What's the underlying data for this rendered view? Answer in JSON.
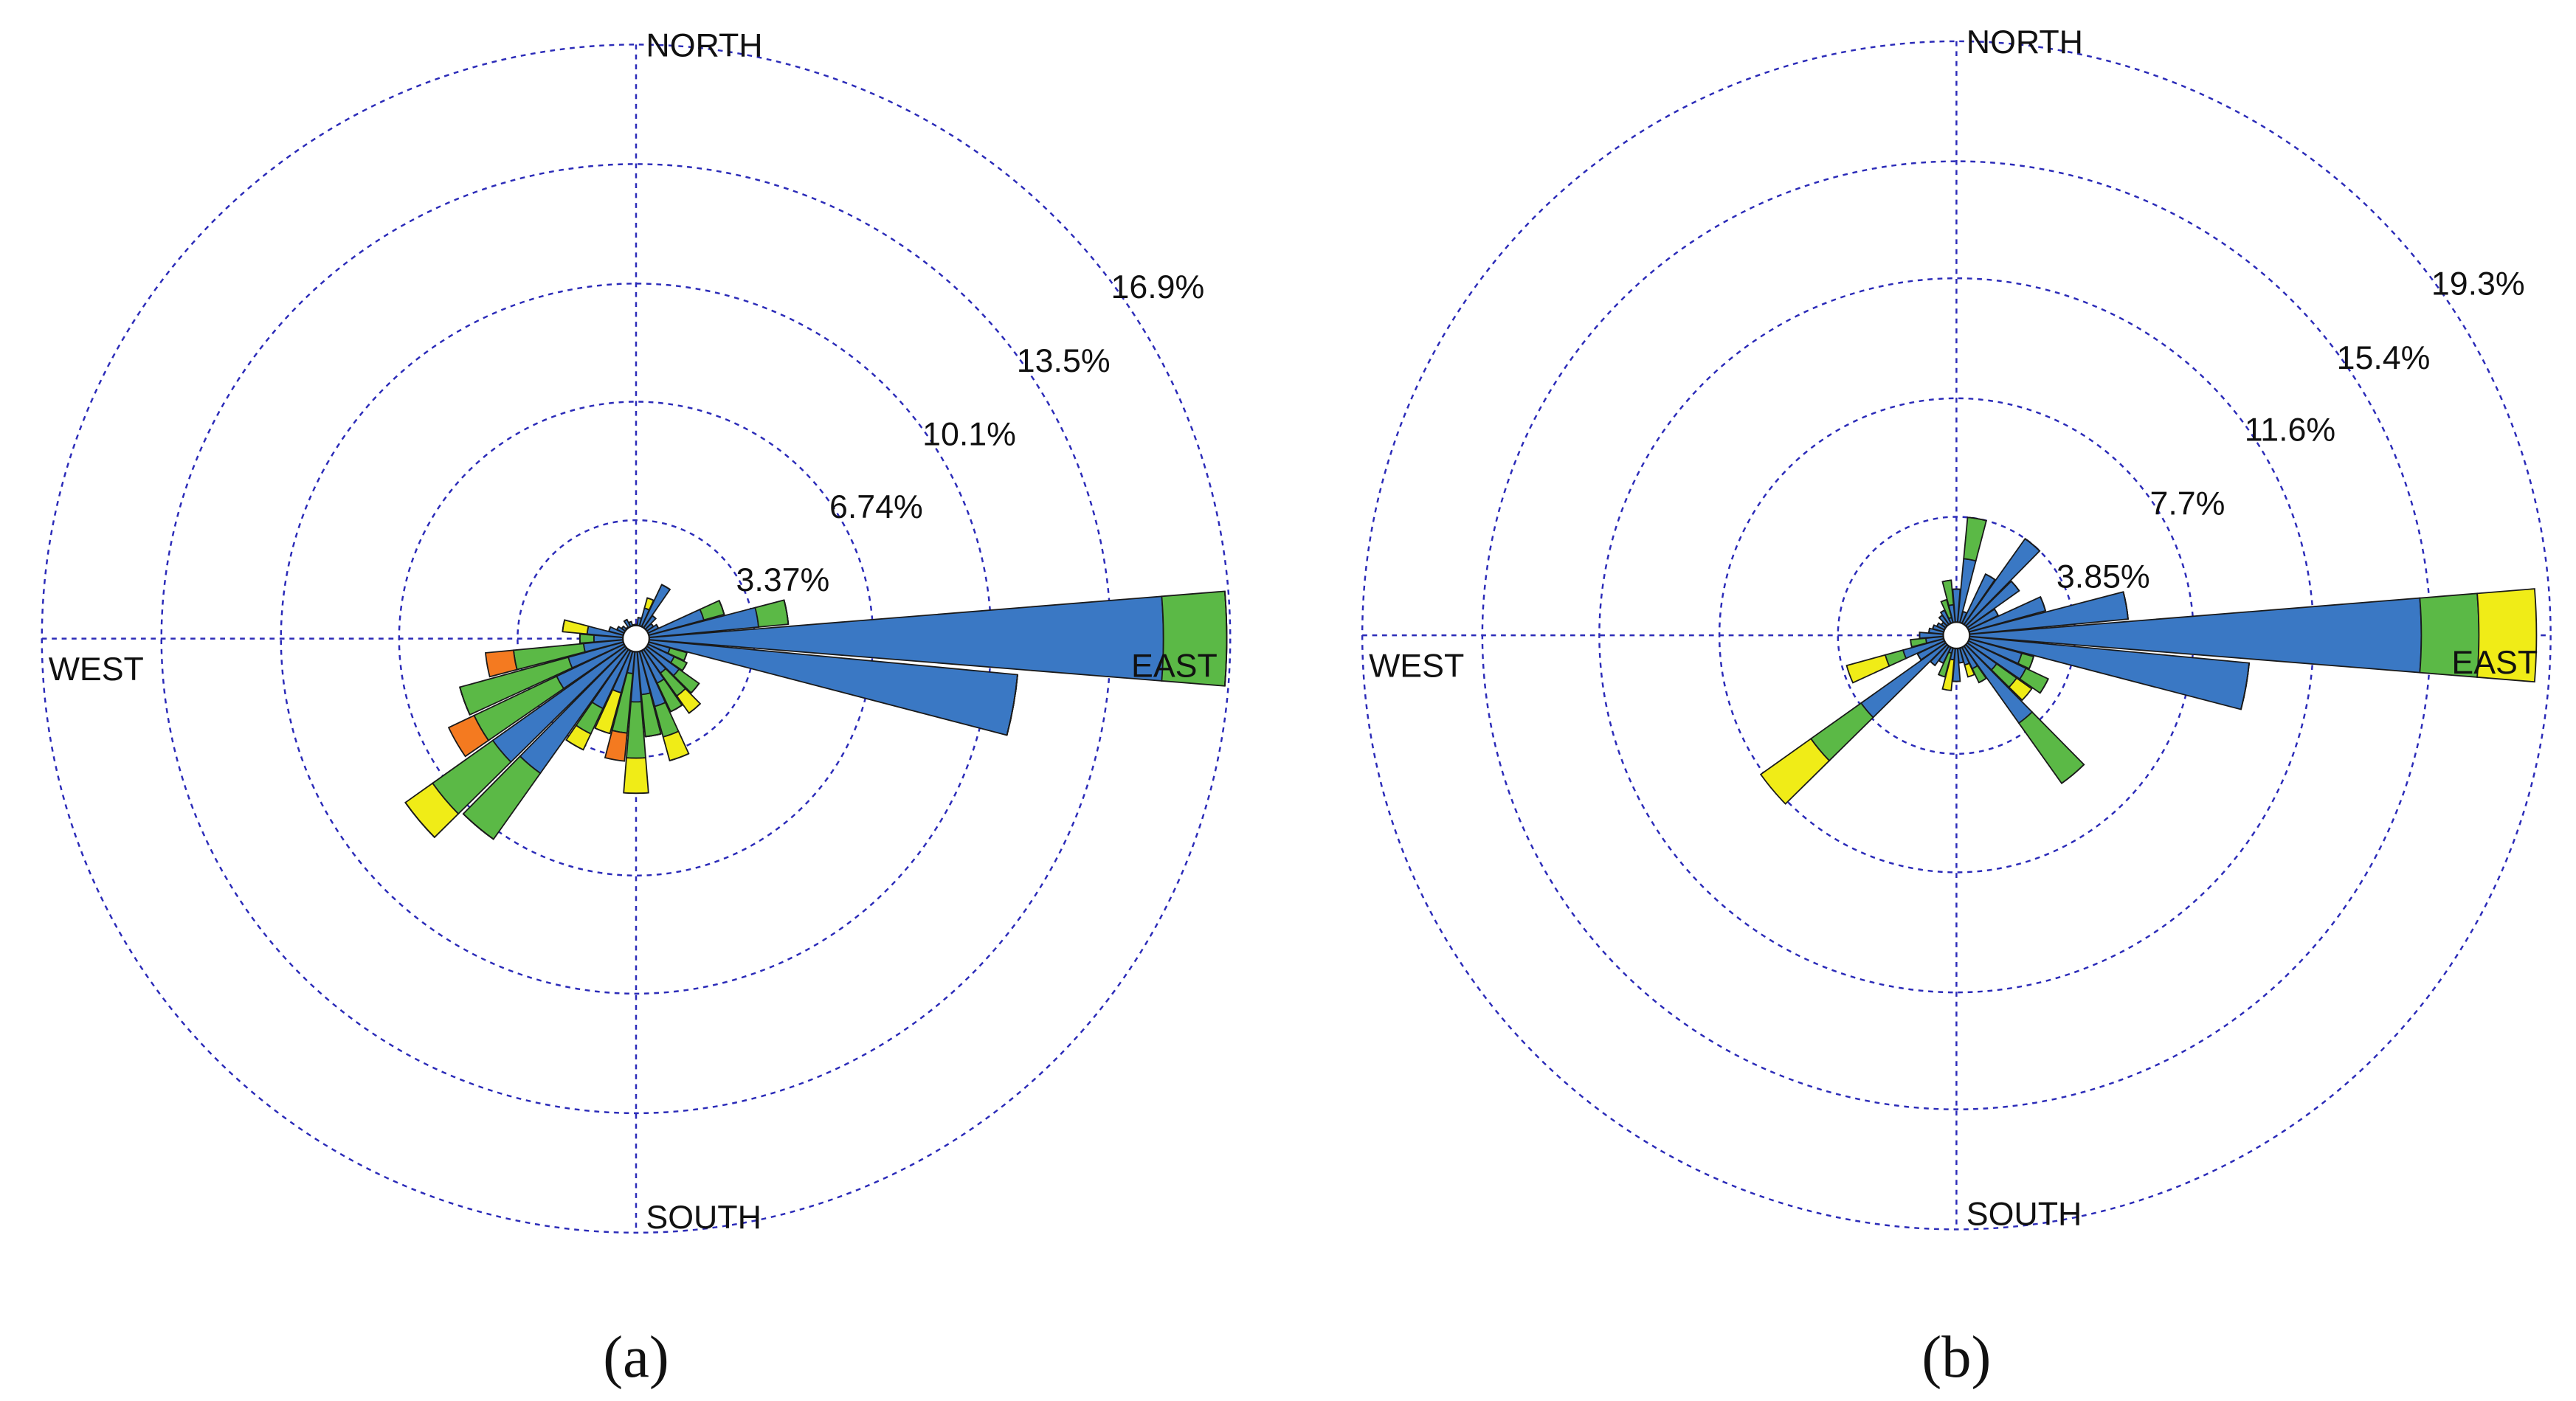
{
  "chart_data": [
    {
      "type": "windrose",
      "compass": {
        "north": "NORTH",
        "east": "EAST",
        "south": "SOUTH",
        "west": "WEST"
      },
      "caption": "(a)",
      "categories": [
        null,
        null,
        null,
        null,
        null,
        null,
        null,
        null,
        null,
        null,
        null,
        null,
        null,
        null,
        null,
        null,
        null,
        null,
        null,
        null,
        null,
        null,
        null,
        null,
        null,
        null,
        null,
        null,
        null,
        null,
        null,
        null,
        null,
        null,
        null,
        null
      ],
      "rlim": [
        0,
        16.9
      ],
      "rticks": [
        {
          "value": 3.37,
          "label": "3.37%"
        },
        {
          "value": 6.74,
          "label": "6.74%"
        },
        {
          "value": 10.1,
          "label": "10.1%"
        },
        {
          "value": 13.5,
          "label": "13.5%"
        },
        {
          "value": 16.9,
          "label": "16.9%"
        }
      ],
      "series": [
        {
          "color": "#3a78c4",
          "values": [
            0.4,
            0.6,
            0.9,
            1.7,
            0.8,
            0.6,
            0.7,
            2.0,
            3.5,
            15.0,
            10.9,
            1.0,
            1.2,
            1.5,
            1.2,
            1.4,
            2.0,
            1.6,
            1.8,
            1.0,
            1.6,
            2.2,
            4.7,
            5.0,
            2.5,
            2.0,
            1.5,
            1.2,
            1.4,
            0.8,
            0.6,
            0.5,
            0.4,
            0.6,
            0.5,
            0.4
          ]
        },
        {
          "color": "#5bb946",
          "values": [
            0,
            0,
            0,
            0,
            0,
            0,
            0,
            0.6,
            0.85,
            1.8,
            0,
            0.5,
            0.4,
            0.7,
            0.8,
            0.9,
            0.9,
            1.2,
            1.6,
            1.7,
            0,
            0.8,
            2.3,
            2.1,
            2.6,
            3.2,
            2.0,
            0.4,
            0,
            0,
            0,
            0,
            0,
            0,
            0,
            0
          ]
        },
        {
          "color": "#f0ec17",
          "values": [
            0,
            0,
            0.3,
            0,
            0,
            0,
            0,
            0,
            0,
            0,
            0,
            0,
            0,
            0,
            0.6,
            0,
            0.7,
            0,
            1.0,
            0,
            1.2,
            0.5,
            0,
            0.95,
            0,
            0,
            0,
            0,
            0.7,
            0,
            0,
            0,
            0,
            0,
            0,
            0
          ]
        },
        {
          "color": "#f47a20",
          "values": [
            0,
            0,
            0,
            0,
            0,
            0,
            0,
            0,
            0,
            0,
            0,
            0,
            0,
            0,
            0,
            0,
            0,
            0,
            0,
            0.8,
            0,
            0,
            0,
            0,
            0.8,
            0,
            0.8,
            0,
            0,
            0,
            0,
            0,
            0,
            0,
            0,
            0
          ]
        }
      ]
    },
    {
      "type": "windrose",
      "compass": {
        "north": "NORTH",
        "east": "EAST",
        "south": "SOUTH",
        "west": "WEST"
      },
      "caption": "(b)",
      "categories": [
        null,
        null,
        null,
        null,
        null,
        null,
        null,
        null,
        null,
        null,
        null,
        null,
        null,
        null,
        null,
        null,
        null,
        null,
        null,
        null,
        null,
        null,
        null,
        null,
        null,
        null,
        null,
        null,
        null,
        null,
        null,
        null,
        null,
        null,
        null,
        null
      ],
      "rlim": [
        0,
        19.3
      ],
      "rticks": [
        {
          "value": 3.85,
          "label": "3.85%"
        },
        {
          "value": 7.7,
          "label": "7.7%"
        },
        {
          "value": 11.6,
          "label": "11.6%"
        },
        {
          "value": 15.4,
          "label": "15.4%"
        },
        {
          "value": 19.3,
          "label": "19.3%"
        }
      ],
      "series": [
        {
          "color": "#3a78c4",
          "values": [
            1.5,
            2.5,
            0.8,
            2.2,
            3.85,
            2.5,
            1.5,
            3.0,
            5.6,
            15.1,
            9.55,
            2.2,
            2.5,
            1.6,
            3.5,
            1.2,
            1.0,
            0.9,
            1.5,
            0.8,
            0.6,
            1.0,
            1.2,
            3.8,
            1.4,
            1.8,
            1.0,
            1.2,
            0.9,
            0.8,
            0.7,
            0.6,
            0.8,
            0.9,
            0.6,
            1.0
          ]
        },
        {
          "color": "#5bb946",
          "values": [
            0,
            1.35,
            0,
            0,
            0,
            0,
            0,
            0,
            0,
            1.87,
            0,
            0.4,
            0.8,
            0.8,
            2.4,
            0.5,
            0,
            0,
            0,
            0,
            0.8,
            0,
            0,
            2.0,
            0,
            0.6,
            0.5,
            0,
            0,
            0,
            0,
            0,
            0,
            0,
            0.6,
            0.8
          ]
        },
        {
          "color": "#f0ec17",
          "values": [
            0,
            0,
            0,
            0,
            0,
            0,
            0,
            0,
            0,
            1.87,
            0,
            0,
            0,
            0.6,
            0,
            0,
            0.4,
            0,
            0,
            1.0,
            0,
            0,
            0,
            2.0,
            0,
            1.3,
            0,
            0,
            0,
            0,
            0,
            0,
            0,
            0,
            0,
            0
          ]
        }
      ]
    }
  ]
}
